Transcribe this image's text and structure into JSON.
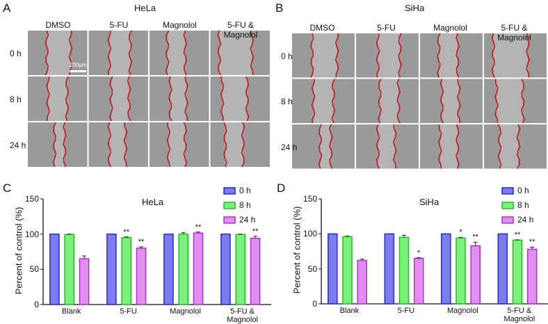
{
  "panels": {
    "A": {
      "letter": "A",
      "title": "HeLa",
      "columns": [
        "DMSO",
        "5-FU",
        "Magnolol",
        "5-FU & Magnolol"
      ],
      "rows": [
        "0 h",
        "8 h",
        "24 h"
      ],
      "scale_bar": "200μm"
    },
    "B": {
      "letter": "B",
      "title": "SiHa",
      "columns": [
        "DMSO",
        "5-FU",
        "Magnolol",
        "5-FU & Magnolol"
      ],
      "rows": [
        "0 h",
        "8 h",
        "24 h"
      ]
    }
  },
  "colors": {
    "0 h": "#7b7cf0",
    "8 h": "#7cf07c",
    "24 h": "#e08ef0",
    "0 h_edge": "#2a2ad0",
    "8 h_edge": "#22c022",
    "24 h_edge": "#b030c8",
    "wound_line": "#c0161c"
  },
  "chart_data": [
    {
      "letter": "C",
      "type": "bar",
      "title": "HeLa",
      "ylabel": "Percent of control (%)",
      "xlabel": "",
      "ylim": [
        0,
        150
      ],
      "yticks": [
        0,
        50,
        100,
        150
      ],
      "categories": [
        "Blank",
        "5-FU",
        "Magnolol",
        "5-FU & Magnolol"
      ],
      "legend": "top-right",
      "series": [
        {
          "name": "0 h",
          "values": [
            100,
            100,
            100,
            100
          ],
          "errors": [
            0,
            0,
            0,
            0
          ],
          "sig": [
            "",
            "",
            "",
            ""
          ]
        },
        {
          "name": "8 h",
          "values": [
            99.5,
            95,
            100,
            99.5
          ],
          "errors": [
            0.5,
            1,
            2,
            0.5
          ],
          "sig": [
            "",
            "**",
            "",
            ""
          ]
        },
        {
          "name": "24 h",
          "values": [
            65,
            80,
            101.5,
            94
          ],
          "errors": [
            4,
            2,
            1.5,
            3
          ],
          "sig": [
            "",
            "**",
            "**",
            "**"
          ]
        }
      ]
    },
    {
      "letter": "D",
      "type": "bar",
      "title": "SiHa",
      "ylabel": "Percent of control (%)",
      "xlabel": "",
      "ylim": [
        0,
        150
      ],
      "yticks": [
        0,
        50,
        100,
        150
      ],
      "categories": [
        "Blank",
        "5-FU",
        "Magnolol",
        "5-FU & Magnolol"
      ],
      "legend": "top-right",
      "series": [
        {
          "name": "0 h",
          "values": [
            100,
            100,
            100,
            100
          ],
          "errors": [
            0,
            0,
            0,
            0
          ],
          "sig": [
            "",
            "",
            "",
            ""
          ]
        },
        {
          "name": "8 h",
          "values": [
            96,
            95,
            94,
            91
          ],
          "errors": [
            1,
            3,
            1,
            0.5
          ],
          "sig": [
            "",
            "",
            "*",
            "**"
          ]
        },
        {
          "name": "24 h",
          "values": [
            62,
            65,
            83,
            78
          ],
          "errors": [
            2,
            1,
            5,
            3
          ],
          "sig": [
            "",
            "*",
            "**",
            "**"
          ]
        }
      ]
    }
  ]
}
